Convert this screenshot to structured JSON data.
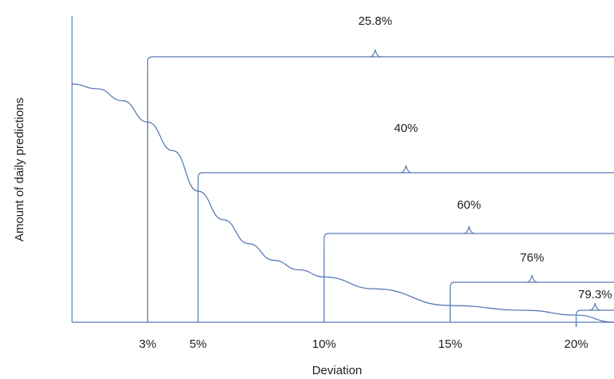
{
  "chart_data": {
    "type": "line",
    "title": "",
    "xlabel": "Deviation",
    "ylabel": "Amount of daily predictions",
    "grid": false,
    "legend": "none",
    "x_ticks": [
      "3%",
      "5%",
      "10%",
      "15%",
      "20%"
    ],
    "series": [
      {
        "x": [
          0,
          1,
          2,
          3,
          4,
          5,
          6,
          7,
          8,
          9,
          10,
          12,
          15,
          18,
          20,
          21.5
        ],
        "y": [
          1.0,
          0.98,
          0.93,
          0.84,
          0.72,
          0.55,
          0.43,
          0.33,
          0.26,
          0.22,
          0.19,
          0.14,
          0.07,
          0.05,
          0.03,
          0.0
        ]
      }
    ],
    "thresholds": [
      {
        "x": 3,
        "label": "3%",
        "bracket_value": "25.8%"
      },
      {
        "x": 5,
        "label": "5%",
        "bracket_value": "40%"
      },
      {
        "x": 10,
        "label": "10%",
        "bracket_value": "60%"
      },
      {
        "x": 15,
        "label": "15%",
        "bracket_value": "76%"
      },
      {
        "x": 20,
        "label": "20%",
        "bracket_value": "79.3%"
      }
    ],
    "xlim": [
      0,
      21.5
    ],
    "ylim": [
      0,
      1.0
    ],
    "colors": {
      "line": "#4f72b3",
      "text": "#1f1f1f"
    }
  }
}
